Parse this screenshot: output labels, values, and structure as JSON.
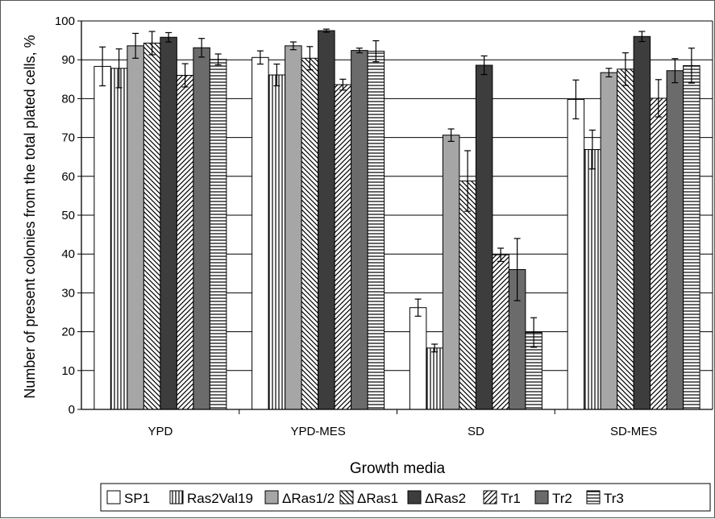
{
  "chart_data": {
    "type": "bar",
    "title": "",
    "xlabel": "Growth media",
    "ylabel": "Number of present colonies from the total plated cells, %",
    "ylim": [
      0,
      100
    ],
    "yticks": [
      "0",
      "10",
      "20",
      "30",
      "40",
      "50",
      "60",
      "70",
      "80",
      "90",
      "100"
    ],
    "grid": "horizontal",
    "legend_position": "bottom",
    "categories": [
      "YPD",
      "YPD-MES",
      "SD",
      "SD-MES"
    ],
    "series": [
      {
        "name": "SP1",
        "pattern": "white",
        "values": [
          88.3,
          90.6,
          26.2,
          79.8
        ],
        "errors": [
          5.0,
          1.7,
          2.2,
          5.0
        ]
      },
      {
        "name": "Ras2Val19",
        "pattern": "vertical",
        "values": [
          87.8,
          86.1,
          15.8,
          66.9
        ],
        "errors": [
          5.0,
          2.8,
          1.0,
          5.0
        ]
      },
      {
        "name": "ΔRas1/2",
        "pattern": "lightgray",
        "values": [
          93.6,
          93.6,
          70.6,
          86.7
        ],
        "errors": [
          3.2,
          1.0,
          1.6,
          1.1
        ]
      },
      {
        "name": "ΔRas1",
        "pattern": "backslash",
        "values": [
          94.3,
          90.4,
          58.8,
          87.6
        ],
        "errors": [
          3.0,
          3.0,
          7.8,
          4.2
        ]
      },
      {
        "name": "ΔRas2",
        "pattern": "darkgray",
        "values": [
          95.8,
          97.5,
          88.6,
          96.0
        ],
        "errors": [
          1.2,
          0.4,
          2.4,
          1.3
        ]
      },
      {
        "name": "Tr1",
        "pattern": "forward",
        "values": [
          86.0,
          83.6,
          39.8,
          80.1
        ],
        "errors": [
          3.0,
          1.4,
          1.7,
          4.8
        ]
      },
      {
        "name": "Tr2",
        "pattern": "medgray",
        "values": [
          93.1,
          92.4,
          36.0,
          87.2
        ],
        "errors": [
          2.4,
          0.6,
          8.0,
          3.1
        ]
      },
      {
        "name": "Tr3",
        "pattern": "horizontal",
        "values": [
          90.1,
          92.2,
          19.8,
          88.5
        ],
        "errors": [
          1.4,
          2.7,
          3.8,
          4.5
        ]
      }
    ]
  }
}
